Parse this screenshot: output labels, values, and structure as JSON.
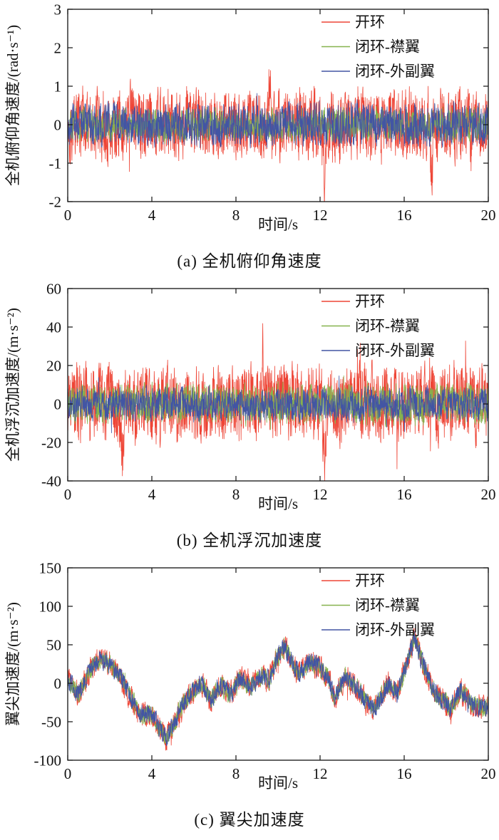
{
  "figure": {
    "background": "#ffffff",
    "frame_color": "#111111"
  },
  "chart_data": [
    {
      "type": "line",
      "caption": "(a) 全机俯仰角速度",
      "xlabel": "时间/s",
      "ylabel": "全机俯仰角速度/(rad·s⁻¹)",
      "xlim": [
        0,
        20
      ],
      "ylim": [
        -2,
        3
      ],
      "xticks": [
        0,
        4,
        8,
        12,
        16,
        20
      ],
      "yticks": [
        -2,
        -1,
        0,
        1,
        2,
        3
      ],
      "grid": false,
      "legend_position": "top-right",
      "samples_per_series": 2000,
      "series": [
        {
          "name": "开环",
          "color": "#ee4536",
          "approx_range": [
            -1.75,
            1.3
          ],
          "noise_amp": 0.75,
          "smooth": 0.5,
          "seed": 101,
          "spike_prob": 0.015,
          "spike_gain": 1.35,
          "events": [
            {
              "t": 12.2,
              "value": -1.45,
              "width": 0.05
            },
            {
              "t": 3.0,
              "value": 0.85,
              "width": 0.04
            },
            {
              "t": 9.6,
              "value": 0.95,
              "width": 0.05
            },
            {
              "t": 5.6,
              "value": 0.8,
              "width": 0.04
            },
            {
              "t": 17.3,
              "value": -1.0,
              "width": 0.05
            }
          ]
        },
        {
          "name": "闭环-襟翼",
          "color": "#86b24e",
          "approx_range": [
            -0.6,
            0.7
          ],
          "noise_amp": 0.34,
          "smooth": 0.45,
          "seed": 202,
          "spike_prob": 0.008,
          "spike_gain": 1.2,
          "events": []
        },
        {
          "name": "闭环-外副翼",
          "color": "#4255a4",
          "approx_range": [
            -0.7,
            0.8
          ],
          "noise_amp": 0.44,
          "smooth": 0.5,
          "seed": 303,
          "spike_prob": 0.008,
          "spike_gain": 1.2,
          "events": []
        }
      ]
    },
    {
      "type": "line",
      "caption": "(b) 全机浮沉加速度",
      "xlabel": "时间/s",
      "ylabel": "全机浮沉加速度/(m·s⁻²)",
      "xlim": [
        0,
        20
      ],
      "ylim": [
        -40,
        60
      ],
      "xticks": [
        0,
        4,
        8,
        12,
        16,
        20
      ],
      "yticks": [
        -40,
        -20,
        0,
        20,
        40,
        60
      ],
      "grid": false,
      "legend_position": "top-right",
      "samples_per_series": 2000,
      "series": [
        {
          "name": "开环",
          "color": "#ee4536",
          "approx_range": [
            -37,
            35
          ],
          "noise_amp": 16,
          "smooth": 0.5,
          "seed": 404,
          "spike_prob": 0.015,
          "spike_gain": 1.5,
          "events": [
            {
              "t": 2.6,
              "value": -28,
              "width": 0.05
            },
            {
              "t": 9.3,
              "value": 27,
              "width": 0.05
            },
            {
              "t": 12.2,
              "value": -26,
              "width": 0.06
            }
          ]
        },
        {
          "name": "闭环-襟翼",
          "color": "#86b24e",
          "approx_range": [
            -16,
            16
          ],
          "noise_amp": 8,
          "smooth": 0.45,
          "seed": 505,
          "spike_prob": 0.008,
          "spike_gain": 1.2,
          "events": []
        },
        {
          "name": "闭环-外副翼",
          "color": "#4255a4",
          "approx_range": [
            -14,
            14
          ],
          "noise_amp": 7,
          "smooth": 0.5,
          "seed": 606,
          "spike_prob": 0.008,
          "spike_gain": 1.2,
          "events": []
        }
      ]
    },
    {
      "type": "line",
      "caption": "(c) 翼尖加速度",
      "xlabel": "时间/s",
      "ylabel": "翼尖加速度/(m·s⁻²)",
      "xlim": [
        0,
        20
      ],
      "ylim": [
        -100,
        150
      ],
      "xticks": [
        0,
        4,
        8,
        12,
        16,
        20
      ],
      "yticks": [
        -100,
        -50,
        0,
        50,
        100,
        150
      ],
      "grid": false,
      "legend_position": "top-right",
      "samples_per_series": 2000,
      "trend_points": [
        [
          0,
          5
        ],
        [
          0.5,
          -15
        ],
        [
          1.0,
          15
        ],
        [
          1.5,
          32
        ],
        [
          2.0,
          25
        ],
        [
          2.5,
          10
        ],
        [
          3.0,
          -20
        ],
        [
          3.5,
          -42
        ],
        [
          4.0,
          -38
        ],
        [
          4.3,
          -55
        ],
        [
          4.7,
          -72
        ],
        [
          5.0,
          -55
        ],
        [
          5.5,
          -25
        ],
        [
          6.0,
          -8
        ],
        [
          6.4,
          0
        ],
        [
          6.8,
          -22
        ],
        [
          7.2,
          -2
        ],
        [
          7.8,
          -14
        ],
        [
          8.2,
          8
        ],
        [
          8.7,
          -6
        ],
        [
          9.2,
          10
        ],
        [
          9.6,
          5
        ],
        [
          10.0,
          35
        ],
        [
          10.3,
          48
        ],
        [
          10.7,
          25
        ],
        [
          11.0,
          12
        ],
        [
          11.5,
          28
        ],
        [
          12.0,
          22
        ],
        [
          12.4,
          5
        ],
        [
          12.7,
          -18
        ],
        [
          13.2,
          8
        ],
        [
          13.8,
          -8
        ],
        [
          14.3,
          -28
        ],
        [
          14.6,
          -32
        ],
        [
          15.2,
          -2
        ],
        [
          15.7,
          -10
        ],
        [
          16.0,
          15
        ],
        [
          16.5,
          58
        ],
        [
          16.9,
          25
        ],
        [
          17.3,
          -5
        ],
        [
          17.8,
          -22
        ],
        [
          18.2,
          -32
        ],
        [
          18.7,
          -10
        ],
        [
          19.2,
          -28
        ],
        [
          19.6,
          -32
        ],
        [
          20,
          -30
        ]
      ],
      "series": [
        {
          "name": "开环",
          "color": "#ee4536",
          "approx_range": [
            -85,
            70
          ],
          "noise_amp": 13,
          "smooth": 0.45,
          "seed": 707,
          "spike_prob": 0.01,
          "spike_gain": 1.3,
          "events": []
        },
        {
          "name": "闭环-襟翼",
          "color": "#86b24e",
          "approx_range": [
            -80,
            65
          ],
          "noise_amp": 10,
          "smooth": 0.45,
          "seed": 808,
          "spike_prob": 0.006,
          "spike_gain": 1.2,
          "events": []
        },
        {
          "name": "闭环-外副翼",
          "color": "#4255a4",
          "approx_range": [
            -80,
            65
          ],
          "noise_amp": 10,
          "smooth": 0.45,
          "seed": 909,
          "spike_prob": 0.006,
          "spike_gain": 1.2,
          "events": []
        }
      ]
    }
  ]
}
